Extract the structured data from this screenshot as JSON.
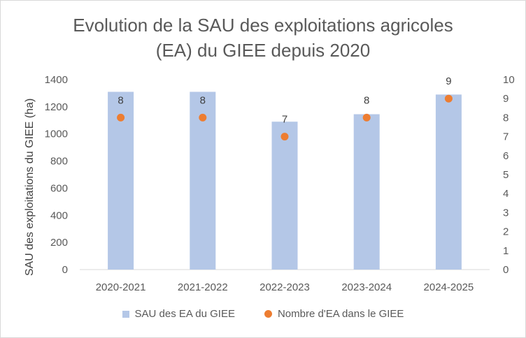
{
  "chart_data": {
    "type": "bar",
    "title_lines": [
      "Evolution de la SAU des exploitations agricoles",
      "(EA) du GIEE depuis 2020"
    ],
    "categories": [
      "2020-2021",
      "2021-2022",
      "2022-2023",
      "2023-2024",
      "2024-2025"
    ],
    "series": [
      {
        "name": "SAU des EA du GIEE",
        "type": "bar",
        "axis": "left",
        "color": "#b4c7e7",
        "values": [
          1310,
          1310,
          1090,
          1145,
          1290
        ]
      },
      {
        "name": "Nombre d'EA dans le GIEE",
        "type": "scatter",
        "axis": "right",
        "color": "#ed7d31",
        "values": [
          8,
          8,
          7,
          8,
          9
        ]
      }
    ],
    "ylabel": "SAU des exploitations du GIEE (ha)",
    "ylim": [
      0,
      1400
    ],
    "yticks": [
      "0",
      "200",
      "400",
      "600",
      "800",
      "1000",
      "1200",
      "1400"
    ],
    "y2lim": [
      0,
      10
    ],
    "y2ticks": [
      "0",
      "1",
      "2",
      "3",
      "4",
      "5",
      "6",
      "7",
      "8",
      "9",
      "10"
    ],
    "data_labels": [
      "8",
      "8",
      "7",
      "8",
      "9"
    ],
    "grid": false,
    "legend": "bottom"
  }
}
